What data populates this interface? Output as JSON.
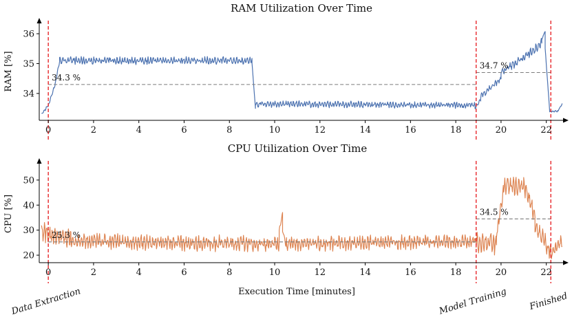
{
  "chart_data": [
    {
      "type": "line",
      "title": "RAM Utilization Over Time",
      "xlabel": "",
      "ylabel": "RAM [%]",
      "xlim": [
        -0.4,
        22.8
      ],
      "ylim": [
        33.1,
        36.3
      ],
      "xticks": [
        0,
        2,
        4,
        6,
        8,
        10,
        12,
        14,
        16,
        18,
        20,
        22
      ],
      "yticks": [
        34,
        35,
        36
      ],
      "color": "#4c72b0",
      "series": [
        {
          "name": "RAM",
          "segments": [
            {
              "x0": -0.3,
              "x1": 0.0,
              "start": 33.3,
              "end": 33.6,
              "noise": 0.05
            },
            {
              "x0": 0.0,
              "x1": 0.3,
              "start": 33.6,
              "end": 34.3,
              "noise": 0.05
            },
            {
              "x0": 0.3,
              "x1": 0.5,
              "start": 34.3,
              "end": 35.1,
              "noise": 0.08
            },
            {
              "x0": 0.5,
              "x1": 9.0,
              "start": 35.1,
              "end": 35.1,
              "noise": 0.14
            },
            {
              "x0": 9.0,
              "x1": 9.15,
              "start": 35.0,
              "end": 33.5,
              "noise": 0.02
            },
            {
              "x0": 9.15,
              "x1": 18.85,
              "start": 33.65,
              "end": 33.6,
              "noise": 0.12
            },
            {
              "x0": 18.85,
              "x1": 19.1,
              "start": 33.5,
              "end": 33.8,
              "noise": 0.06
            },
            {
              "x0": 19.1,
              "x1": 20.0,
              "start": 33.9,
              "end": 34.5,
              "noise": 0.12
            },
            {
              "x0": 20.0,
              "x1": 21.0,
              "start": 34.7,
              "end": 35.2,
              "noise": 0.15
            },
            {
              "x0": 21.0,
              "x1": 21.8,
              "start": 35.2,
              "end": 35.7,
              "noise": 0.18
            },
            {
              "x0": 21.8,
              "x1": 21.95,
              "start": 35.8,
              "end": 36.1,
              "noise": 0.05
            },
            {
              "x0": 21.95,
              "x1": 22.15,
              "start": 35.5,
              "end": 33.4,
              "noise": 0.02
            },
            {
              "x0": 22.15,
              "x1": 22.5,
              "start": 33.4,
              "end": 33.4,
              "noise": 0.04
            },
            {
              "x0": 22.5,
              "x1": 22.7,
              "start": 33.4,
              "end": 33.65,
              "noise": 0.03
            }
          ]
        }
      ],
      "averages": [
        {
          "label": "34.3 %",
          "value": 34.3,
          "x_start": 0.0,
          "x_end": 18.9
        },
        {
          "label": "34.7 %",
          "value": 34.7,
          "x_start": 18.9,
          "x_end": 22.2
        }
      ]
    },
    {
      "type": "line",
      "title": "CPU Utilization Over Time",
      "xlabel": "Execution Time [minutes]",
      "ylabel": "CPU [%]",
      "xlim": [
        -0.4,
        22.8
      ],
      "ylim": [
        17,
        56
      ],
      "xticks": [
        0,
        2,
        4,
        6,
        8,
        10,
        12,
        14,
        16,
        18,
        20,
        22
      ],
      "yticks": [
        20,
        30,
        40,
        50
      ],
      "color": "#dd8452",
      "series": [
        {
          "name": "CPU",
          "segments": [
            {
              "x0": -0.3,
              "x1": 1.0,
              "start": 29,
              "end": 27,
              "noise": 4.5
            },
            {
              "x0": 1.0,
              "x1": 10.2,
              "start": 25.5,
              "end": 24.5,
              "noise": 3.5
            },
            {
              "x0": 10.2,
              "x1": 10.35,
              "start": 30,
              "end": 37,
              "noise": 1
            },
            {
              "x0": 10.35,
              "x1": 10.5,
              "start": 30,
              "end": 24,
              "noise": 1
            },
            {
              "x0": 10.5,
              "x1": 18.9,
              "start": 24.5,
              "end": 25.5,
              "noise": 3.2
            },
            {
              "x0": 18.9,
              "x1": 19.8,
              "start": 26,
              "end": 24,
              "noise": 5
            },
            {
              "x0": 19.8,
              "x1": 20.1,
              "start": 28,
              "end": 45,
              "noise": 3
            },
            {
              "x0": 20.1,
              "x1": 21.0,
              "start": 47,
              "end": 48,
              "noise": 4
            },
            {
              "x0": 21.0,
              "x1": 21.5,
              "start": 48,
              "end": 36,
              "noise": 4
            },
            {
              "x0": 21.5,
              "x1": 22.2,
              "start": 32,
              "end": 21,
              "noise": 4
            },
            {
              "x0": 22.2,
              "x1": 22.7,
              "start": 20,
              "end": 26,
              "noise": 3
            }
          ]
        }
      ],
      "averages": [
        {
          "label": "25.3 %",
          "value": 25.3,
          "x_start": 0.0,
          "x_end": 18.9
        },
        {
          "label": "34.5 %",
          "value": 34.5,
          "x_start": 18.9,
          "x_end": 22.2
        }
      ]
    }
  ],
  "phases": [
    {
      "label": "Data Extraction",
      "x": 0.0
    },
    {
      "label": "Model Training",
      "x": 18.9
    },
    {
      "label": "Finished",
      "x": 22.2
    }
  ],
  "colors": {
    "phase_line": "#e8262a",
    "average_line": "#7a7a7a",
    "axis": "#000000"
  }
}
